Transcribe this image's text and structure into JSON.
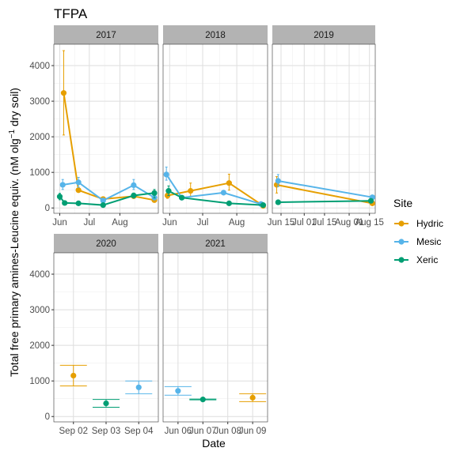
{
  "chart_data": {
    "type": "line",
    "title": "TFPA",
    "xlabel": "Date",
    "ylabel": "Total free primary amines-Leucine equiv. (nM olg",
    "ylabel_sup": "−1",
    "ylabel_end": " dry soil)",
    "legend": {
      "title": "Site",
      "position": "right",
      "items": [
        {
          "name": "Hydric",
          "color": "#E69F00"
        },
        {
          "name": "Mesic",
          "color": "#56B4E9"
        },
        {
          "name": "Xeric",
          "color": "#009E73"
        }
      ]
    },
    "ylim": [
      -150,
      4600
    ],
    "y_ticks": [
      0,
      1000,
      2000,
      3000,
      4000
    ],
    "grid": true,
    "panels": [
      {
        "label": "2017",
        "x_type": "time",
        "xlim": [
          "2017-05-26",
          "2017-09-09"
        ],
        "x_ticks": [
          {
            "date": "2017-06-01",
            "label": "Jun"
          },
          {
            "date": "2017-07-01",
            "label": "Jul"
          },
          {
            "date": "2017-08-01",
            "label": "Aug"
          }
        ],
        "series": [
          {
            "name": "Hydric",
            "points": [
              {
                "x": "2017-06-05",
                "y": 3230,
                "lo": 2050,
                "hi": 4420
              },
              {
                "x": "2017-06-20",
                "y": 500,
                "lo": 440,
                "hi": 560
              },
              {
                "x": "2017-07-15",
                "y": 250,
                "lo": 220,
                "hi": 280
              },
              {
                "x": "2017-08-15",
                "y": 330,
                "lo": 290,
                "hi": 370
              },
              {
                "x": "2017-09-05",
                "y": 220,
                "lo": 180,
                "hi": 260
              }
            ]
          },
          {
            "name": "Mesic",
            "points": [
              {
                "x": "2017-06-04",
                "y": 650,
                "lo": 520,
                "hi": 800
              },
              {
                "x": "2017-06-20",
                "y": 720,
                "lo": 580,
                "hi": 860
              },
              {
                "x": "2017-07-15",
                "y": 210,
                "lo": 180,
                "hi": 240
              },
              {
                "x": "2017-08-15",
                "y": 640,
                "lo": 520,
                "hi": 800
              },
              {
                "x": "2017-09-05",
                "y": 290,
                "lo": 240,
                "hi": 340
              }
            ]
          },
          {
            "name": "Xeric",
            "points": [
              {
                "x": "2017-06-01",
                "y": 320,
                "lo": 230,
                "hi": 410
              },
              {
                "x": "2017-06-06",
                "y": 140,
                "lo": 110,
                "hi": 170
              },
              {
                "x": "2017-06-20",
                "y": 130,
                "lo": 100,
                "hi": 160
              },
              {
                "x": "2017-07-15",
                "y": 80,
                "lo": 60,
                "hi": 100
              },
              {
                "x": "2017-08-15",
                "y": 350,
                "lo": 280,
                "hi": 420
              },
              {
                "x": "2017-09-05",
                "y": 420,
                "lo": 280,
                "hi": 520
              }
            ]
          }
        ]
      },
      {
        "label": "2018",
        "x_type": "time",
        "xlim": [
          "2018-05-26",
          "2018-08-29"
        ],
        "x_ticks": [
          {
            "date": "2018-06-01",
            "label": "Jun"
          },
          {
            "date": "2018-07-01",
            "label": "Jul"
          },
          {
            "date": "2018-08-01",
            "label": "Aug"
          }
        ],
        "series": [
          {
            "name": "Hydric",
            "points": [
              {
                "x": "2018-05-30",
                "y": 350,
                "lo": 270,
                "hi": 430
              },
              {
                "x": "2018-06-20",
                "y": 480,
                "lo": 330,
                "hi": 700
              },
              {
                "x": "2018-07-25",
                "y": 700,
                "lo": 500,
                "hi": 950
              },
              {
                "x": "2018-08-25",
                "y": 60,
                "lo": 30,
                "hi": 90
              }
            ]
          },
          {
            "name": "Mesic",
            "points": [
              {
                "x": "2018-05-29",
                "y": 940,
                "lo": 780,
                "hi": 1150
              },
              {
                "x": "2018-06-12",
                "y": 290,
                "lo": 250,
                "hi": 330
              },
              {
                "x": "2018-07-20",
                "y": 430,
                "lo": 380,
                "hi": 480
              },
              {
                "x": "2018-08-23",
                "y": 110,
                "lo": 80,
                "hi": 140
              }
            ]
          },
          {
            "name": "Xeric",
            "points": [
              {
                "x": "2018-05-31",
                "y": 480,
                "lo": 350,
                "hi": 620
              },
              {
                "x": "2018-06-12",
                "y": 290,
                "lo": 260,
                "hi": 320
              },
              {
                "x": "2018-07-25",
                "y": 130,
                "lo": 100,
                "hi": 160
              },
              {
                "x": "2018-08-25",
                "y": 80,
                "lo": 60,
                "hi": 100
              }
            ]
          }
        ]
      },
      {
        "label": "2019",
        "x_type": "time",
        "xlim": [
          "2019-06-09",
          "2019-08-19"
        ],
        "x_ticks": [
          {
            "date": "2019-06-15",
            "label": "Jun 15"
          },
          {
            "date": "2019-07-01",
            "label": "Jul 01"
          },
          {
            "date": "2019-07-15",
            "label": "Jul 15"
          },
          {
            "date": "2019-08-01",
            "label": "Aug 01"
          },
          {
            "date": "2019-08-15",
            "label": "Aug 15"
          }
        ],
        "series": [
          {
            "name": "Hydric",
            "points": [
              {
                "x": "2019-06-12",
                "y": 650,
                "lo": 420,
                "hi": 880
              },
              {
                "x": "2019-08-17",
                "y": 130,
                "lo": 100,
                "hi": 160
              }
            ]
          },
          {
            "name": "Mesic",
            "points": [
              {
                "x": "2019-06-13",
                "y": 760,
                "lo": 600,
                "hi": 940
              },
              {
                "x": "2019-08-17",
                "y": 300,
                "lo": 260,
                "hi": 340
              }
            ]
          },
          {
            "name": "Xeric",
            "points": [
              {
                "x": "2019-06-13",
                "y": 160,
                "lo": 130,
                "hi": 190
              },
              {
                "x": "2019-08-16",
                "y": 200,
                "lo": 170,
                "hi": 230
              }
            ]
          }
        ]
      },
      {
        "label": "2020",
        "x_type": "category",
        "categories": [
          "Sep 02",
          "Sep 03",
          "Sep 04"
        ],
        "series": [
          {
            "name": "Hydric",
            "points": [
              {
                "x": "Sep 02",
                "y": 1150,
                "lo": 860,
                "hi": 1440
              }
            ]
          },
          {
            "name": "Mesic",
            "points": [
              {
                "x": "Sep 04",
                "y": 820,
                "lo": 640,
                "hi": 1000
              }
            ]
          },
          {
            "name": "Xeric",
            "points": [
              {
                "x": "Sep 03",
                "y": 370,
                "lo": 260,
                "hi": 480
              }
            ]
          }
        ]
      },
      {
        "label": "2021",
        "x_type": "category",
        "categories": [
          "Jun 06",
          "Jun 07",
          "Jun 08",
          "Jun 09"
        ],
        "series": [
          {
            "name": "Hydric",
            "points": [
              {
                "x": "Jun 09",
                "y": 530,
                "lo": 420,
                "hi": 640
              }
            ]
          },
          {
            "name": "Mesic",
            "points": [
              {
                "x": "Jun 06",
                "y": 720,
                "lo": 600,
                "hi": 840
              }
            ]
          },
          {
            "name": "Xeric",
            "points": [
              {
                "x": "Jun 07",
                "y": 480,
                "lo": 470,
                "hi": 490
              }
            ]
          }
        ]
      }
    ]
  }
}
